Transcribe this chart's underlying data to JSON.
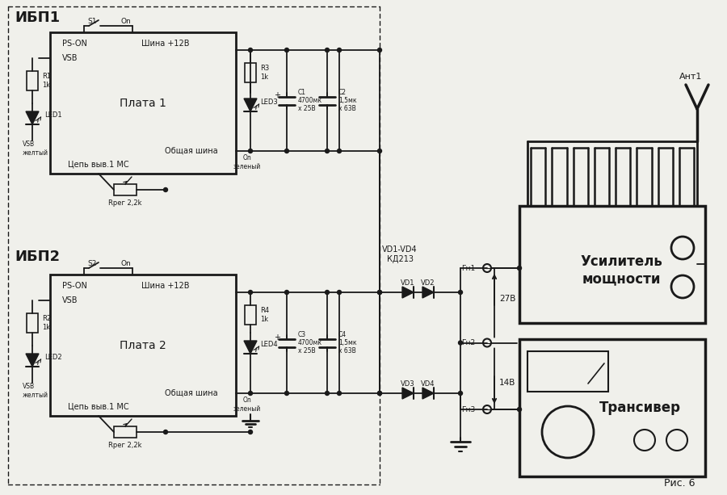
{
  "fig_caption": "Рис. 6",
  "bg_color": "#f0f0eb",
  "line_color": "#1a1a1a",
  "text_color": "#1a1a1a",
  "ibp1_label": "ИБП1",
  "ibp2_label": "ИБП2",
  "plata1_label": "Плата 1",
  "plata2_label": "Плата 2",
  "amplifier_label": "Усилитель\nмощности",
  "transceiver_label": "Трансивер",
  "ant_label": "Ант1",
  "label_27v": "27В",
  "label_14v": "14В",
  "vd1_vd4_label": "VD1-VD4\nКД213",
  "shin12v_label": "Шина +12В",
  "obsh_shina": "Общая шина",
  "tsep_vyv": "Цепь выв.1 МС",
  "ps_on": "PS-ON",
  "vsb": "VSB",
  "on_zeleny": "On\nзеленый",
  "vsb_zheltyi": "VSB\nжелтый",
  "r1": "R1\n1k",
  "r2": "R2\n1k",
  "r3": "R3\n1k",
  "r4": "R4\n1k",
  "rper1": "Rрег 2,2k",
  "rper2": "Rрег 2,2k",
  "c1_label": "C1\n4700мк\nх 25В",
  "c2_label": "C2\n1,5мк\nх 63В",
  "c3_label": "C3\n4700мк\nх 25В",
  "c4_label": "C4\n1,5мк\nх 63В",
  "led1": "LED1",
  "led2": "LED2",
  "led3": "LED3",
  "led4": "LED4",
  "s1_label": "S1",
  "s2_label": "S2",
  "on_label": "On",
  "gn1": "Гн1",
  "gn2": "Гн2",
  "gn3": "Гн3",
  "vd1": "VD1",
  "vd2": "VD2",
  "vd3": "VD3",
  "vd4": "VD4"
}
